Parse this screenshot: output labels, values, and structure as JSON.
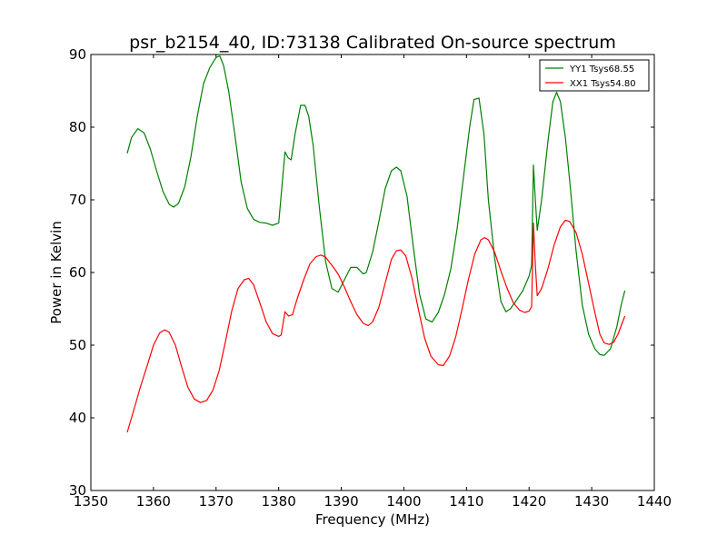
{
  "chart_data": {
    "type": "line",
    "title": "psr_b2154_40, ID:73138 Calibrated On-source spectrum",
    "xlabel": "Frequency (MHz)",
    "ylabel": "Power in Kelvin",
    "xlim": [
      1350,
      1440
    ],
    "ylim": [
      30,
      90
    ],
    "xticks": [
      1350,
      1360,
      1370,
      1380,
      1390,
      1400,
      1410,
      1420,
      1430,
      1440
    ],
    "yticks": [
      30,
      40,
      50,
      60,
      70,
      80,
      90
    ],
    "grid": false,
    "legend_position": "top-right",
    "series": [
      {
        "name": "YY1 Tsys68.55",
        "color": "#008000",
        "points": [
          [
            1355.8,
            76.4
          ],
          [
            1356.5,
            78.6
          ],
          [
            1357.5,
            79.8
          ],
          [
            1358.5,
            79.2
          ],
          [
            1359.5,
            77.0
          ],
          [
            1360.5,
            74.0
          ],
          [
            1361.5,
            71.2
          ],
          [
            1362.5,
            69.4
          ],
          [
            1363.2,
            69.0
          ],
          [
            1364.0,
            69.5
          ],
          [
            1365.0,
            71.8
          ],
          [
            1366.0,
            76.0
          ],
          [
            1367.0,
            81.5
          ],
          [
            1368.0,
            86.0
          ],
          [
            1369.0,
            88.2
          ],
          [
            1370.0,
            89.6
          ],
          [
            1370.6,
            89.8
          ],
          [
            1371.2,
            88.5
          ],
          [
            1372.0,
            85.0
          ],
          [
            1373.0,
            79.0
          ],
          [
            1374.0,
            72.5
          ],
          [
            1375.0,
            68.8
          ],
          [
            1376.0,
            67.3
          ],
          [
            1377.0,
            66.9
          ],
          [
            1378.0,
            66.8
          ],
          [
            1379.0,
            66.5
          ],
          [
            1380.0,
            66.8
          ],
          [
            1381.0,
            76.6
          ],
          [
            1381.5,
            75.8
          ],
          [
            1382.0,
            75.5
          ],
          [
            1382.6,
            79.0
          ],
          [
            1383.5,
            83.0
          ],
          [
            1384.2,
            83.0
          ],
          [
            1384.8,
            81.5
          ],
          [
            1385.5,
            77.5
          ],
          [
            1386.5,
            69.0
          ],
          [
            1387.5,
            61.5
          ],
          [
            1388.5,
            57.8
          ],
          [
            1389.5,
            57.3
          ],
          [
            1390.5,
            59.0
          ],
          [
            1391.5,
            60.7
          ],
          [
            1392.5,
            60.7
          ],
          [
            1393.5,
            59.8
          ],
          [
            1394.0,
            60.0
          ],
          [
            1395.0,
            62.8
          ],
          [
            1396.0,
            67.0
          ],
          [
            1397.0,
            71.5
          ],
          [
            1398.0,
            74.0
          ],
          [
            1398.8,
            74.5
          ],
          [
            1399.5,
            74.0
          ],
          [
            1400.5,
            70.5
          ],
          [
            1401.5,
            63.5
          ],
          [
            1402.5,
            57.0
          ],
          [
            1403.5,
            53.6
          ],
          [
            1404.5,
            53.2
          ],
          [
            1405.5,
            54.5
          ],
          [
            1406.5,
            57.0
          ],
          [
            1407.5,
            60.5
          ],
          [
            1408.5,
            66.0
          ],
          [
            1409.5,
            73.0
          ],
          [
            1410.5,
            80.0
          ],
          [
            1411.2,
            83.8
          ],
          [
            1412.0,
            84.0
          ],
          [
            1412.8,
            79.0
          ],
          [
            1413.5,
            70.0
          ],
          [
            1414.5,
            62.0
          ],
          [
            1415.5,
            56.0
          ],
          [
            1416.3,
            54.6
          ],
          [
            1417.0,
            55.0
          ],
          [
            1418.0,
            56.2
          ],
          [
            1419.0,
            57.5
          ],
          [
            1420.0,
            59.5
          ],
          [
            1420.4,
            61.0
          ],
          [
            1420.7,
            74.8
          ],
          [
            1421.0,
            70.0
          ],
          [
            1421.3,
            65.8
          ],
          [
            1422.0,
            70.0
          ],
          [
            1423.0,
            78.0
          ],
          [
            1423.8,
            83.5
          ],
          [
            1424.4,
            84.8
          ],
          [
            1425.0,
            83.5
          ],
          [
            1425.8,
            78.5
          ],
          [
            1426.5,
            72.5
          ],
          [
            1427.5,
            63.0
          ],
          [
            1428.5,
            55.5
          ],
          [
            1429.5,
            51.5
          ],
          [
            1430.5,
            49.5
          ],
          [
            1431.3,
            48.7
          ],
          [
            1432.0,
            48.6
          ],
          [
            1433.0,
            49.5
          ],
          [
            1434.0,
            52.5
          ],
          [
            1434.7,
            55.5
          ],
          [
            1435.3,
            57.5
          ]
        ]
      },
      {
        "name": "XX1 Tsys54.80",
        "color": "#ff0000",
        "points": [
          [
            1355.8,
            38.0
          ],
          [
            1357.0,
            41.5
          ],
          [
            1358.0,
            44.5
          ],
          [
            1359.0,
            47.2
          ],
          [
            1360.0,
            50.0
          ],
          [
            1361.0,
            51.7
          ],
          [
            1361.8,
            52.1
          ],
          [
            1362.5,
            51.8
          ],
          [
            1363.5,
            50.0
          ],
          [
            1364.5,
            47.0
          ],
          [
            1365.5,
            44.2
          ],
          [
            1366.5,
            42.6
          ],
          [
            1367.5,
            42.1
          ],
          [
            1368.5,
            42.4
          ],
          [
            1369.5,
            43.8
          ],
          [
            1370.5,
            46.5
          ],
          [
            1371.5,
            50.5
          ],
          [
            1372.5,
            54.7
          ],
          [
            1373.5,
            57.8
          ],
          [
            1374.5,
            59.0
          ],
          [
            1375.2,
            59.2
          ],
          [
            1376.0,
            58.3
          ],
          [
            1377.0,
            55.8
          ],
          [
            1378.0,
            53.2
          ],
          [
            1379.0,
            51.6
          ],
          [
            1380.0,
            51.2
          ],
          [
            1380.4,
            51.4
          ],
          [
            1381.0,
            54.6
          ],
          [
            1381.6,
            54.0
          ],
          [
            1382.2,
            54.2
          ],
          [
            1383.0,
            56.5
          ],
          [
            1384.0,
            59.0
          ],
          [
            1385.0,
            61.2
          ],
          [
            1386.0,
            62.2
          ],
          [
            1386.8,
            62.4
          ],
          [
            1387.5,
            62.1
          ],
          [
            1388.5,
            61.0
          ],
          [
            1389.5,
            59.8
          ],
          [
            1390.5,
            58.0
          ],
          [
            1391.5,
            56.0
          ],
          [
            1392.5,
            54.2
          ],
          [
            1393.5,
            53.0
          ],
          [
            1394.3,
            52.7
          ],
          [
            1395.0,
            53.2
          ],
          [
            1396.0,
            55.2
          ],
          [
            1397.0,
            58.5
          ],
          [
            1398.0,
            61.8
          ],
          [
            1398.8,
            63.0
          ],
          [
            1399.5,
            63.1
          ],
          [
            1400.3,
            62.3
          ],
          [
            1401.3,
            59.2
          ],
          [
            1402.3,
            55.0
          ],
          [
            1403.3,
            51.0
          ],
          [
            1404.3,
            48.5
          ],
          [
            1405.5,
            47.3
          ],
          [
            1406.3,
            47.2
          ],
          [
            1407.3,
            48.5
          ],
          [
            1408.3,
            51.2
          ],
          [
            1409.3,
            55.0
          ],
          [
            1410.3,
            59.0
          ],
          [
            1411.3,
            62.5
          ],
          [
            1412.3,
            64.5
          ],
          [
            1412.9,
            64.8
          ],
          [
            1413.5,
            64.5
          ],
          [
            1414.5,
            62.8
          ],
          [
            1415.5,
            60.2
          ],
          [
            1416.5,
            57.8
          ],
          [
            1417.5,
            55.8
          ],
          [
            1418.5,
            54.8
          ],
          [
            1419.3,
            54.5
          ],
          [
            1420.0,
            54.7
          ],
          [
            1420.4,
            55.3
          ],
          [
            1420.7,
            66.8
          ],
          [
            1421.0,
            61.0
          ],
          [
            1421.3,
            56.8
          ],
          [
            1422.0,
            57.8
          ],
          [
            1423.0,
            60.5
          ],
          [
            1424.0,
            63.8
          ],
          [
            1425.0,
            66.3
          ],
          [
            1425.8,
            67.2
          ],
          [
            1426.5,
            67.0
          ],
          [
            1427.5,
            65.5
          ],
          [
            1428.5,
            62.5
          ],
          [
            1429.5,
            58.5
          ],
          [
            1430.5,
            54.5
          ],
          [
            1431.3,
            51.5
          ],
          [
            1432.0,
            50.3
          ],
          [
            1432.8,
            50.1
          ],
          [
            1433.5,
            50.4
          ],
          [
            1434.2,
            51.5
          ],
          [
            1435.3,
            54.0
          ]
        ]
      }
    ]
  }
}
